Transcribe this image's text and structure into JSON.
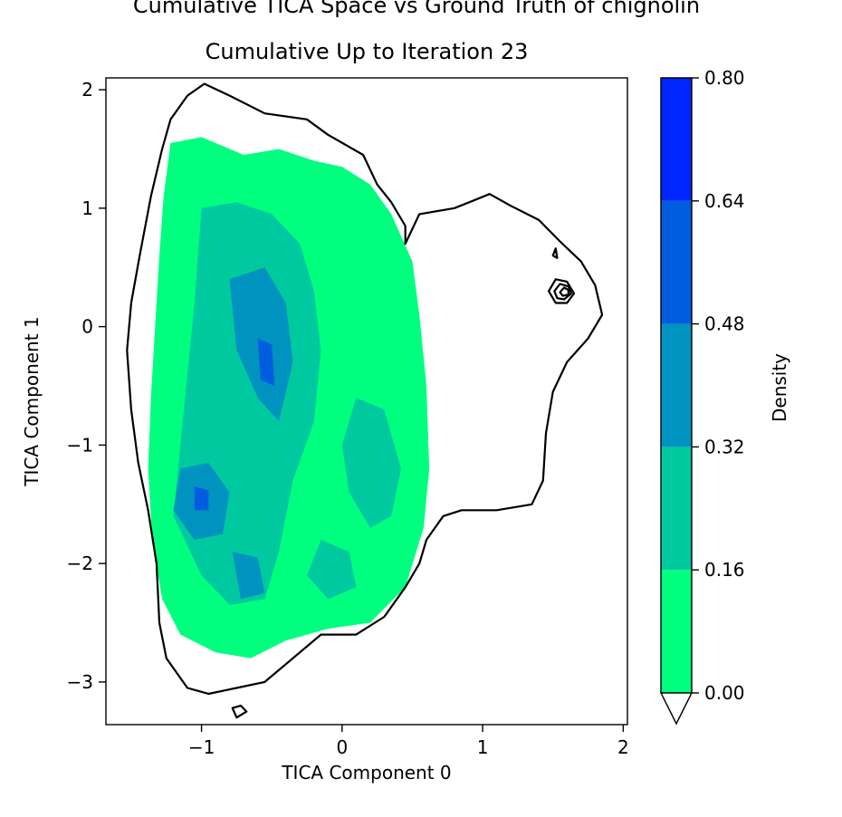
{
  "chart_data": {
    "type": "heatmap",
    "suptitle": "Cumulative TICA Space vs Ground Truth of chignolin",
    "title": "Cumulative Up to Iteration 23",
    "xlabel": "TICA Component 0",
    "ylabel": "TICA Component 1",
    "xlim": [
      -1.68,
      2.03
    ],
    "ylim": [
      -3.36,
      2.1
    ],
    "xticks": [
      -1,
      0,
      1,
      2
    ],
    "xtick_labels": [
      "−1",
      "0",
      "1",
      "2"
    ],
    "yticks": [
      -3,
      -2,
      -1,
      0,
      1,
      2
    ],
    "ytick_labels": [
      "−3",
      "−2",
      "−1",
      "0",
      "1",
      "2"
    ],
    "colorbar": {
      "label": "Density",
      "levels": [
        0.0,
        0.16,
        0.32,
        0.48,
        0.64,
        0.8
      ],
      "tick_labels": [
        "0.00",
        "0.16",
        "0.32",
        "0.48",
        "0.64",
        "0.80"
      ],
      "colors": [
        "#00ff7f",
        "#00c99f",
        "#0093bf",
        "#005ddf",
        "#0027ff"
      ],
      "under_color": "#ffffff"
    },
    "density_regions": [
      {
        "level": 0,
        "points": [
          [
            -1.22,
            1.55
          ],
          [
            -1.0,
            1.6
          ],
          [
            -0.7,
            1.45
          ],
          [
            -0.45,
            1.5
          ],
          [
            -0.2,
            1.4
          ],
          [
            0.0,
            1.35
          ],
          [
            0.2,
            1.2
          ],
          [
            0.35,
            0.95
          ],
          [
            0.5,
            0.55
          ],
          [
            0.55,
            0.1
          ],
          [
            0.6,
            -0.5
          ],
          [
            0.62,
            -1.2
          ],
          [
            0.58,
            -1.7
          ],
          [
            0.45,
            -2.2
          ],
          [
            0.2,
            -2.5
          ],
          [
            -0.1,
            -2.55
          ],
          [
            -0.4,
            -2.65
          ],
          [
            -0.65,
            -2.8
          ],
          [
            -0.9,
            -2.75
          ],
          [
            -1.15,
            -2.6
          ],
          [
            -1.28,
            -2.3
          ],
          [
            -1.35,
            -1.8
          ],
          [
            -1.38,
            -1.2
          ],
          [
            -1.36,
            -0.6
          ],
          [
            -1.33,
            0.0
          ],
          [
            -1.3,
            0.6
          ],
          [
            -1.27,
            1.1
          ]
        ]
      },
      {
        "level": 1,
        "points": [
          [
            -1.0,
            1.0
          ],
          [
            -0.75,
            1.05
          ],
          [
            -0.5,
            0.95
          ],
          [
            -0.3,
            0.7
          ],
          [
            -0.2,
            0.3
          ],
          [
            -0.15,
            -0.2
          ],
          [
            -0.2,
            -0.8
          ],
          [
            -0.35,
            -1.3
          ],
          [
            -0.45,
            -1.9
          ],
          [
            -0.55,
            -2.3
          ],
          [
            -0.8,
            -2.35
          ],
          [
            -1.0,
            -2.1
          ],
          [
            -1.2,
            -1.6
          ],
          [
            -1.15,
            -1.0
          ],
          [
            -1.1,
            -0.4
          ],
          [
            -1.05,
            0.2
          ]
        ]
      },
      {
        "level": 1,
        "points": [
          [
            0.1,
            -0.6
          ],
          [
            0.3,
            -0.7
          ],
          [
            0.42,
            -1.2
          ],
          [
            0.35,
            -1.6
          ],
          [
            0.2,
            -1.7
          ],
          [
            0.05,
            -1.4
          ],
          [
            0.0,
            -1.0
          ]
        ]
      },
      {
        "level": 1,
        "points": [
          [
            -0.15,
            -1.8
          ],
          [
            0.05,
            -1.9
          ],
          [
            0.1,
            -2.2
          ],
          [
            -0.1,
            -2.3
          ],
          [
            -0.25,
            -2.1
          ]
        ]
      },
      {
        "level": 2,
        "points": [
          [
            -0.8,
            0.4
          ],
          [
            -0.55,
            0.5
          ],
          [
            -0.4,
            0.2
          ],
          [
            -0.35,
            -0.3
          ],
          [
            -0.45,
            -0.8
          ],
          [
            -0.6,
            -0.6
          ],
          [
            -0.75,
            -0.2
          ]
        ]
      },
      {
        "level": 2,
        "points": [
          [
            -1.15,
            -1.2
          ],
          [
            -0.95,
            -1.15
          ],
          [
            -0.8,
            -1.4
          ],
          [
            -0.85,
            -1.75
          ],
          [
            -1.05,
            -1.8
          ],
          [
            -1.2,
            -1.55
          ]
        ]
      },
      {
        "level": 2,
        "points": [
          [
            -0.78,
            -1.9
          ],
          [
            -0.6,
            -1.95
          ],
          [
            -0.55,
            -2.25
          ],
          [
            -0.72,
            -2.3
          ]
        ]
      },
      {
        "level": 3,
        "points": [
          [
            -0.6,
            -0.1
          ],
          [
            -0.5,
            -0.15
          ],
          [
            -0.48,
            -0.5
          ],
          [
            -0.58,
            -0.45
          ]
        ]
      },
      {
        "level": 3,
        "points": [
          [
            -1.05,
            -1.35
          ],
          [
            -0.95,
            -1.38
          ],
          [
            -0.95,
            -1.55
          ],
          [
            -1.05,
            -1.55
          ]
        ]
      }
    ],
    "ground_truth_contours": [
      [
        [
          -0.98,
          2.05
        ],
        [
          -0.8,
          1.95
        ],
        [
          -0.55,
          1.8
        ],
        [
          -0.25,
          1.75
        ],
        [
          -0.1,
          1.62
        ],
        [
          0.15,
          1.45
        ],
        [
          0.25,
          1.2
        ],
        [
          0.35,
          1.05
        ],
        [
          0.45,
          0.85
        ],
        [
          0.45,
          0.7
        ],
        [
          0.55,
          0.95
        ],
        [
          0.8,
          1.0
        ],
        [
          1.05,
          1.12
        ],
        [
          1.2,
          1.02
        ],
        [
          1.4,
          0.9
        ],
        [
          1.55,
          0.72
        ],
        [
          1.7,
          0.55
        ],
        [
          1.8,
          0.35
        ],
        [
          1.85,
          0.1
        ],
        [
          1.75,
          -0.1
        ],
        [
          1.6,
          -0.3
        ],
        [
          1.5,
          -0.55
        ],
        [
          1.45,
          -0.9
        ],
        [
          1.43,
          -1.3
        ],
        [
          1.35,
          -1.5
        ],
        [
          1.1,
          -1.55
        ],
        [
          0.85,
          -1.55
        ],
        [
          0.72,
          -1.6
        ],
        [
          0.6,
          -1.8
        ],
        [
          0.55,
          -2.0
        ],
        [
          0.45,
          -2.2
        ],
        [
          0.3,
          -2.45
        ],
        [
          0.1,
          -2.6
        ],
        [
          -0.15,
          -2.6
        ],
        [
          -0.4,
          -2.85
        ],
        [
          -0.55,
          -3.0
        ],
        [
          -0.75,
          -3.05
        ],
        [
          -0.95,
          -3.1
        ],
        [
          -1.1,
          -3.05
        ],
        [
          -1.25,
          -2.8
        ],
        [
          -1.3,
          -2.5
        ],
        [
          -1.32,
          -2.0
        ],
        [
          -1.38,
          -1.55
        ],
        [
          -1.45,
          -1.15
        ],
        [
          -1.5,
          -0.7
        ],
        [
          -1.53,
          -0.2
        ],
        [
          -1.5,
          0.2
        ],
        [
          -1.44,
          0.6
        ],
        [
          -1.36,
          1.1
        ],
        [
          -1.28,
          1.5
        ],
        [
          -1.22,
          1.75
        ],
        [
          -1.1,
          1.95
        ]
      ],
      [
        [
          1.47,
          0.3
        ],
        [
          1.52,
          0.4
        ],
        [
          1.6,
          0.38
        ],
        [
          1.65,
          0.28
        ],
        [
          1.6,
          0.2
        ],
        [
          1.52,
          0.2
        ]
      ],
      [
        [
          1.51,
          0.3
        ],
        [
          1.55,
          0.36
        ],
        [
          1.61,
          0.34
        ],
        [
          1.63,
          0.28
        ],
        [
          1.58,
          0.23
        ],
        [
          1.53,
          0.24
        ]
      ],
      [
        [
          1.55,
          0.29
        ],
        [
          1.58,
          0.33
        ],
        [
          1.61,
          0.31
        ],
        [
          1.61,
          0.27
        ],
        [
          1.57,
          0.26
        ]
      ],
      [
        [
          1.5,
          0.6
        ],
        [
          1.52,
          0.66
        ],
        [
          1.53,
          0.58
        ]
      ],
      [
        [
          -0.72,
          -3.2
        ],
        [
          -0.68,
          -3.25
        ],
        [
          -0.75,
          -3.3
        ],
        [
          -0.78,
          -3.22
        ]
      ]
    ]
  }
}
